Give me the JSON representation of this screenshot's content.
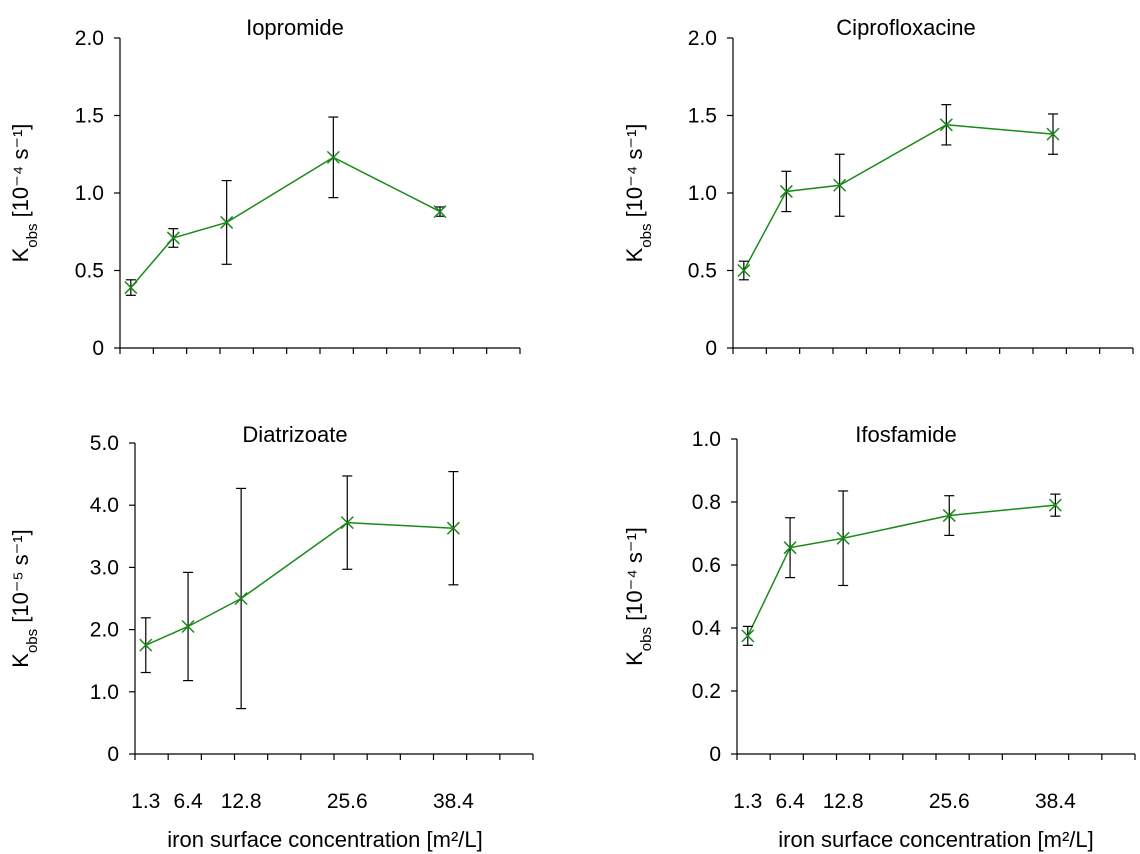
{
  "xlabel": "iron surface concentration [m²/L]",
  "colors": {
    "series": "#1a8a1a",
    "errorbar": "#000000",
    "axis": "#000000"
  },
  "chart_data": [
    {
      "type": "line",
      "title": "Iopromide",
      "ylabel": "K_obs [10⁻⁴ s⁻¹]",
      "ylim": [
        0,
        2.0
      ],
      "yticks": [
        "0",
        "0.5",
        "1.0",
        "1.5",
        "2.0"
      ],
      "ytick_values": [
        0,
        0.5,
        1.0,
        1.5,
        2.0
      ],
      "x": [
        1.3,
        6.4,
        12.8,
        25.6,
        38.4
      ],
      "values": [
        0.39,
        0.71,
        0.81,
        1.23,
        0.88
      ],
      "errors": [
        0.05,
        0.06,
        0.27,
        0.26,
        0.03
      ]
    },
    {
      "type": "line",
      "title": "Ciprofloxacine",
      "ylabel": "K_obs [10⁻⁴ s⁻¹]",
      "ylim": [
        0,
        2.0
      ],
      "yticks": [
        "0",
        "0.5",
        "1.0",
        "1.5",
        "2.0"
      ],
      "ytick_values": [
        0,
        0.5,
        1.0,
        1.5,
        2.0
      ],
      "x": [
        1.3,
        6.4,
        12.8,
        25.6,
        38.4
      ],
      "values": [
        0.5,
        1.01,
        1.05,
        1.44,
        1.38
      ],
      "errors": [
        0.06,
        0.13,
        0.2,
        0.13,
        0.13
      ]
    },
    {
      "type": "line",
      "title": "Diatrizoate",
      "ylabel": "K_obs [10⁻⁵ s⁻¹]",
      "ylim": [
        0,
        5.0
      ],
      "yticks": [
        "0",
        "1.0",
        "2.0",
        "3.0",
        "4.0",
        "5.0"
      ],
      "ytick_values": [
        0,
        1.0,
        2.0,
        3.0,
        4.0,
        5.0
      ],
      "x": [
        1.3,
        6.4,
        12.8,
        25.6,
        38.4
      ],
      "values": [
        1.75,
        2.05,
        2.5,
        3.72,
        3.63
      ],
      "errors": [
        0.44,
        0.87,
        1.77,
        0.75,
        0.91
      ]
    },
    {
      "type": "line",
      "title": "Ifosfamide",
      "ylabel": "K_obs [10⁻⁴ s⁻¹]",
      "ylim": [
        0,
        1.0
      ],
      "yticks": [
        "0",
        "0.2",
        "0.4",
        "0.6",
        "0.8",
        "1.0"
      ],
      "ytick_values": [
        0,
        0.2,
        0.4,
        0.6,
        0.8,
        1.0
      ],
      "x": [
        1.3,
        6.4,
        12.8,
        25.6,
        38.4
      ],
      "values": [
        0.375,
        0.655,
        0.685,
        0.757,
        0.79
      ],
      "errors": [
        0.03,
        0.095,
        0.15,
        0.063,
        0.035
      ]
    }
  ],
  "xtick_labels": [
    "1.3",
    "6.4",
    "12.8",
    "25.6",
    "38.4"
  ],
  "xtick_values": [
    1.3,
    6.4,
    12.8,
    25.6,
    38.4
  ]
}
